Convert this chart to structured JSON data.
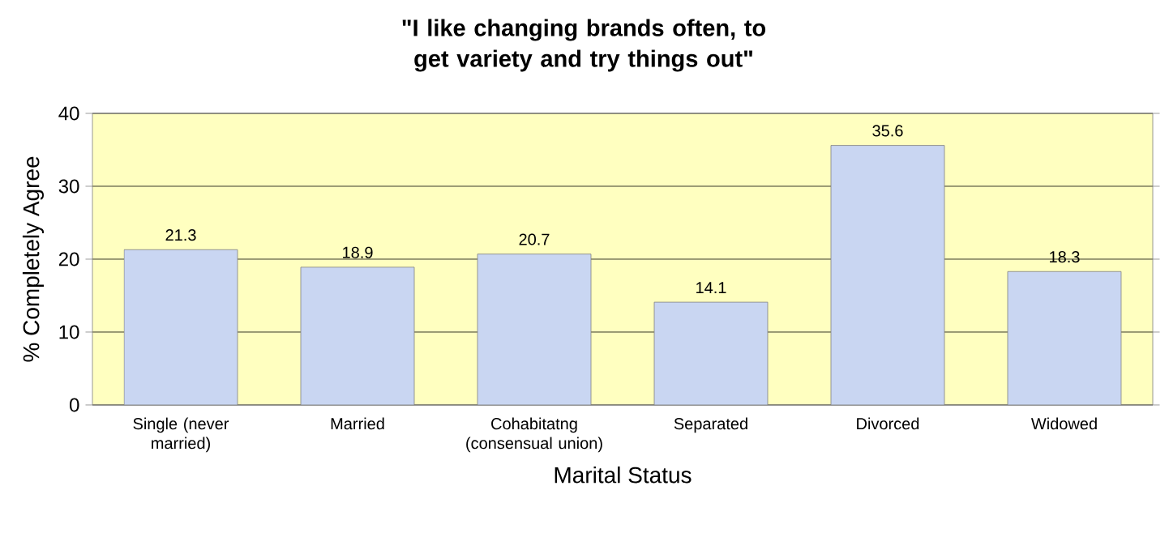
{
  "chart_data": {
    "type": "bar",
    "title": "\"I like changing brands often, to get variety and try things out\"",
    "xlabel": "Marital Status",
    "ylabel": "% Completely Agree",
    "categories": [
      "Single (never married)",
      "Married",
      "Cohabitatng (consensual union)",
      "Separated",
      "Divorced",
      "Widowed"
    ],
    "values": [
      21.3,
      18.9,
      20.7,
      14.1,
      35.6,
      18.3
    ],
    "color": "#c9d6f2",
    "ylim": [
      0,
      40
    ],
    "yticks": [
      0,
      10,
      20,
      30,
      40
    ],
    "grid": "y",
    "data_labels": true
  }
}
